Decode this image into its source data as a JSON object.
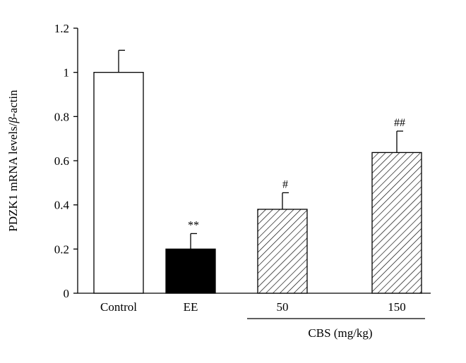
{
  "chart_data": {
    "type": "bar",
    "categories": [
      "Control",
      "EE",
      "50",
      "150"
    ],
    "values": [
      1.0,
      0.2,
      0.38,
      0.637
    ],
    "errors": [
      0.1,
      0.07,
      0.075,
      0.097
    ],
    "significance": [
      "",
      "**",
      "#",
      "##"
    ],
    "bar_styles": [
      "open",
      "solid",
      "hatched",
      "hatched"
    ],
    "ylabel_main": "PDZK1 mRNA levels/",
    "ylabel_symbol": "β",
    "ylabel_tail": "-actin",
    "group_label": "CBS (mg/kg)",
    "group_members": [
      2,
      3
    ],
    "ylim": [
      0,
      1.2
    ],
    "yticks": [
      0,
      0.2,
      0.4,
      0.6,
      0.8,
      1,
      1.2
    ],
    "ytick_labels": [
      "0",
      "0.2",
      "0.4",
      "0.6",
      "0.8",
      "1",
      "1.2"
    ],
    "grid": false,
    "colors": {
      "bar_stroke": "#000000",
      "solid_fill": "#000000",
      "open_fill": "#ffffff"
    }
  }
}
